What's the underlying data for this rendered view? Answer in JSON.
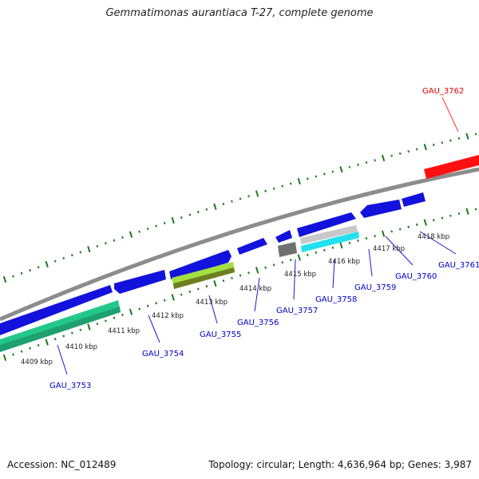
{
  "title": "Gemmatimonas aurantiaca T-27, complete genome",
  "footer": {
    "accession": "Accession: NC_012489",
    "summary": "Topology: circular; Length: 4,636,964 bp; Genes: 3,987"
  },
  "colors": {
    "backbone": "#8c8c8c",
    "tick": "#1a7a1a",
    "forward_gene": "#1010e0",
    "highlight_gene": "#ff0000",
    "gene_label": "#0000cc",
    "highlight_label": "#e00000"
  },
  "kbp_labels": [
    "4409 kbp",
    "4410 kbp",
    "4411 kbp",
    "4412 kbp",
    "4413 kbp",
    "4414 kbp",
    "4415 kbp",
    "4416 kbp",
    "4417 kbp",
    "4418 kbp"
  ],
  "genes": [
    {
      "id": "GAU_3753",
      "label": "GAU_3753",
      "color": "#0000cc"
    },
    {
      "id": "GAU_3754",
      "label": "GAU_3754",
      "color": "#0000cc"
    },
    {
      "id": "GAU_3755",
      "label": "GAU_3755",
      "color": "#0000cc"
    },
    {
      "id": "GAU_3756",
      "label": "GAU_3756",
      "color": "#0000cc"
    },
    {
      "id": "GAU_3757",
      "label": "GAU_3757",
      "color": "#0000cc"
    },
    {
      "id": "GAU_3758",
      "label": "GAU_3758",
      "color": "#0000cc"
    },
    {
      "id": "GAU_3759",
      "label": "GAU_3759",
      "color": "#0000cc"
    },
    {
      "id": "GAU_3760",
      "label": "GAU_3760",
      "color": "#0000cc"
    },
    {
      "id": "GAU_3761",
      "label": "GAU_3761",
      "color": "#0000cc"
    },
    {
      "id": "GAU_3762",
      "label": "GAU_3762",
      "color": "#e00000"
    }
  ]
}
